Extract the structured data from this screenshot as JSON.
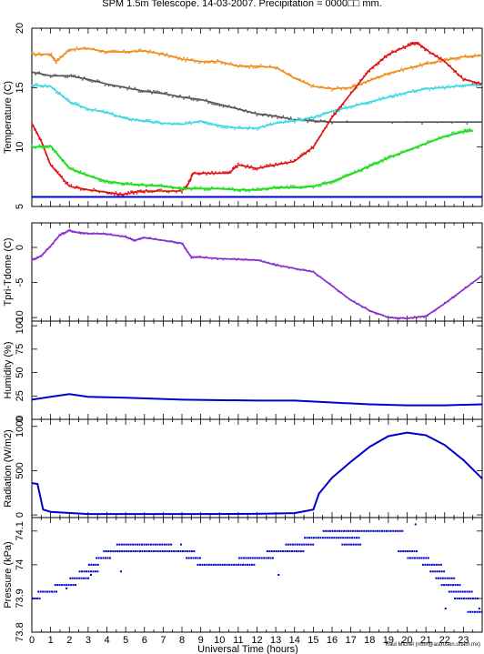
{
  "title": "SPM 1.5m Telescope. 14-03-2007. Precipitation = 0000□□ mm.",
  "credit": "Raul Michel (rmm@astrosen.unam.mx)",
  "colors": {
    "orange": "#f08c1e",
    "darkgray": "#555555",
    "cyan": "#3cd8e0",
    "red": "#e01010",
    "green": "#22dd22",
    "blue": "#0000cc",
    "purple": "#8830d0"
  },
  "chart_data": [
    {
      "type": "scatter",
      "ylabel": "Temperature (C)",
      "ylim": [
        5,
        20
      ],
      "yticks": [
        5,
        10,
        15,
        20
      ],
      "series": [
        {
          "color": "orange",
          "x": [
            0,
            1,
            1.3,
            2,
            3,
            4,
            5,
            6,
            7,
            8,
            9,
            10,
            11,
            12,
            13,
            14,
            15,
            16,
            17,
            18,
            19,
            20,
            21,
            22,
            23,
            24
          ],
          "y": [
            17.8,
            17.8,
            17.2,
            18.2,
            18.3,
            18.0,
            18.0,
            18.1,
            17.8,
            17.4,
            17.2,
            17.2,
            16.8,
            16.8,
            16.7,
            15.8,
            15.1,
            14.9,
            15.0,
            15.6,
            16.2,
            16.6,
            17.0,
            17.3,
            17.6,
            17.7
          ]
        },
        {
          "color": "darkgray",
          "x": [
            0,
            1,
            2,
            3,
            4,
            5,
            6,
            7,
            8,
            9,
            10,
            11,
            12,
            13,
            14,
            15,
            16,
            24
          ],
          "y": [
            16.3,
            16.0,
            16.0,
            15.7,
            15.3,
            15.0,
            14.7,
            14.5,
            14.2,
            14.0,
            13.6,
            13.2,
            12.8,
            12.6,
            12.3,
            12.2,
            12.1,
            12.1
          ]
        },
        {
          "color": "cyan",
          "x": [
            0,
            1,
            2,
            3,
            4,
            5,
            6,
            7,
            8,
            9,
            10,
            11,
            12,
            13,
            14,
            15,
            16,
            17,
            18,
            19,
            20,
            21,
            22,
            23,
            24
          ],
          "y": [
            15.2,
            15.1,
            13.8,
            13.2,
            12.9,
            12.4,
            12.2,
            12.0,
            11.9,
            12.2,
            11.8,
            11.6,
            11.6,
            12.0,
            12.2,
            12.5,
            13.0,
            13.4,
            13.8,
            14.2,
            14.6,
            14.9,
            15.0,
            15.2,
            15.2
          ]
        },
        {
          "color": "red",
          "x": [
            0,
            0.5,
            1,
            2,
            3,
            4,
            4.8,
            5.5,
            6,
            7,
            8,
            8.3,
            8.6,
            9.5,
            10.5,
            11.0,
            12.0,
            13,
            14,
            15,
            16,
            17,
            18,
            19,
            20,
            20.5,
            21,
            22,
            23,
            24
          ],
          "y": [
            12,
            10.5,
            8.5,
            6.7,
            6.4,
            6.2,
            6.0,
            6.2,
            6.3,
            6.3,
            6.3,
            6.8,
            7.8,
            7.8,
            7.8,
            8.5,
            8.2,
            8.5,
            8.8,
            10.0,
            12.5,
            14.5,
            16.5,
            17.8,
            18.5,
            18.8,
            18.2,
            17.2,
            15.7,
            15.3
          ]
        },
        {
          "color": "green",
          "x": [
            0,
            1,
            2,
            3,
            4,
            5,
            6,
            7,
            8,
            9,
            10,
            11,
            12,
            13,
            14,
            15,
            16,
            17,
            18,
            19,
            20,
            21,
            22,
            23,
            23.5
          ],
          "y": [
            10.0,
            10.1,
            8.2,
            7.6,
            7.1,
            6.9,
            6.8,
            6.7,
            6.5,
            6.5,
            6.5,
            6.4,
            6.4,
            6.6,
            6.6,
            6.7,
            7.1,
            7.7,
            8.4,
            9.1,
            9.7,
            10.3,
            10.9,
            11.3,
            11.4
          ]
        },
        {
          "color": "blue",
          "x": [
            0,
            24
          ],
          "y": [
            5.8,
            5.8
          ]
        }
      ]
    },
    {
      "type": "scatter",
      "ylabel": "Tpri-Tdome (C)",
      "ylim": [
        -10.5,
        3.5
      ],
      "yticks": [
        -10,
        -5,
        0
      ],
      "series": [
        {
          "color": "purple",
          "x": [
            0,
            0.5,
            1,
            1.5,
            2,
            2.5,
            3,
            4,
            5,
            5.5,
            6,
            7,
            8,
            8.5,
            9,
            10,
            11,
            12,
            13,
            14,
            15,
            16,
            17,
            18,
            19,
            20,
            21,
            22,
            23,
            24
          ],
          "y": [
            -1.8,
            -1.2,
            0.2,
            1.8,
            2.4,
            2.1,
            2.0,
            1.9,
            1.5,
            1.0,
            1.4,
            1.0,
            0.6,
            -1.4,
            -1.4,
            -1.6,
            -1.7,
            -1.8,
            -2.5,
            -3.0,
            -3.5,
            -5.5,
            -7.5,
            -9.0,
            -10.0,
            -10.1,
            -9.8,
            -8.0,
            -6.0,
            -4.0
          ]
        }
      ]
    },
    {
      "type": "line",
      "ylabel": "Humidity (%)",
      "ylim": [
        0,
        105
      ],
      "yticks": [
        0,
        25,
        50,
        75,
        100
      ],
      "series": [
        {
          "color": "blue",
          "x": [
            0,
            1,
            2,
            3,
            5,
            8,
            12,
            14,
            16,
            18,
            20,
            22,
            24
          ],
          "y": [
            21,
            24,
            27,
            24,
            23,
            21,
            20,
            20,
            18,
            16,
            15,
            15,
            16
          ]
        }
      ]
    },
    {
      "type": "line",
      "ylabel": "Radiation (W/m2)",
      "ylim": [
        -30,
        1080
      ],
      "yticks": [
        0,
        500,
        1000
      ],
      "series": [
        {
          "color": "blue",
          "x": [
            0,
            0.3,
            0.6,
            1,
            3,
            6,
            9,
            12,
            14,
            15,
            15.3,
            16,
            17,
            18,
            19,
            20,
            21,
            22,
            23,
            24
          ],
          "y": [
            360,
            350,
            60,
            35,
            10,
            10,
            10,
            12,
            20,
            60,
            240,
            420,
            600,
            770,
            890,
            930,
            900,
            790,
            620,
            410
          ]
        }
      ]
    },
    {
      "type": "scatter",
      "ylabel": "Pressure (kPa)",
      "ylim": [
        73.8,
        74.14
      ],
      "yticks": [
        73.8,
        73.9,
        74,
        74.1
      ],
      "series": [
        {
          "color": "blue",
          "segments": [
            [
              0,
              0.4,
              73.9
            ],
            [
              0.3,
              1.3,
              73.92
            ],
            [
              1.2,
              2.4,
              73.94
            ],
            [
              2.0,
              3.0,
              73.96
            ],
            [
              2.5,
              3.5,
              73.98
            ],
            [
              3.0,
              3.6,
              74.0
            ],
            [
              3.4,
              4.2,
              74.02
            ],
            [
              3.8,
              8.6,
              74.04
            ],
            [
              4.5,
              7.5,
              74.06
            ],
            [
              8.2,
              9.0,
              74.02
            ],
            [
              8.8,
              11.8,
              74.0
            ],
            [
              11.0,
              12.8,
              74.02
            ],
            [
              12.5,
              14.5,
              74.04
            ],
            [
              13.5,
              15.0,
              74.06
            ],
            [
              14.5,
              17.5,
              74.08
            ],
            [
              15.5,
              19.8,
              74.1
            ],
            [
              16.5,
              17.5,
              74.06
            ],
            [
              19.5,
              20.5,
              74.04
            ],
            [
              20.0,
              21.2,
              74.02
            ],
            [
              20.8,
              21.8,
              74.0
            ],
            [
              21.2,
              22.0,
              73.98
            ],
            [
              21.5,
              22.5,
              73.96
            ],
            [
              21.8,
              22.8,
              73.94
            ],
            [
              22.2,
              23.5,
              73.92
            ],
            [
              22.5,
              23.8,
              73.9
            ],
            [
              23.2,
              24.0,
              73.86
            ]
          ],
          "points": [
            [
              1.8,
              73.93
            ],
            [
              3.1,
              73.97
            ],
            [
              4.7,
              73.98
            ],
            [
              7.9,
              74.06
            ],
            [
              20.4,
              74.12
            ],
            [
              13.1,
              73.97
            ],
            [
              22.0,
              73.87
            ],
            [
              23.8,
              73.87
            ]
          ]
        }
      ]
    }
  ],
  "xaxis": {
    "title": "Universal Time (hours)",
    "range": [
      0,
      24
    ],
    "tick_labels": [
      "0",
      "1",
      "2",
      "3",
      "4",
      "5",
      "6",
      "7",
      "8",
      "9",
      "10",
      "11",
      "12",
      "13",
      "14",
      "15",
      "16",
      "17",
      "18",
      "19",
      "20",
      "21",
      "22",
      "23"
    ]
  }
}
